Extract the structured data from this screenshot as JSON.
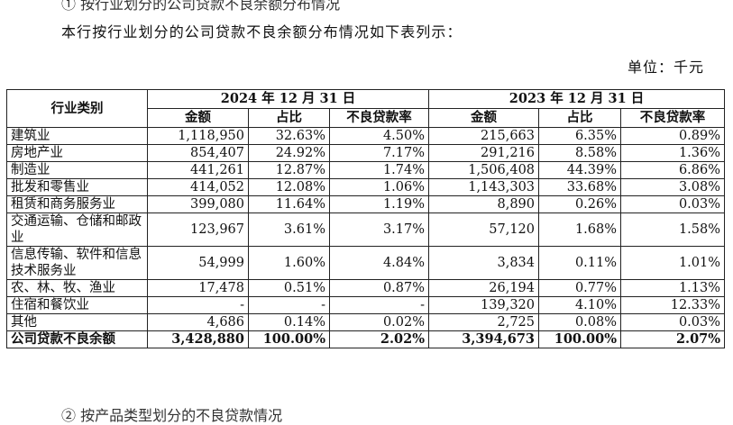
{
  "top_partial": "① 按行业划分的公司贷款不良余额分布情况",
  "intro": "本行按行业划分的公司贷款不良余额分布情况如下表列示：",
  "unit": "单位：千元",
  "bottom_partial": "② 按产品类型划分的不良贷款情况",
  "table": {
    "header_category": "行业类别",
    "year_2024": "2024 年 12 月 31 日",
    "year_2023": "2023 年 12 月 31 日",
    "sub_headers": [
      "金额",
      "占比",
      "不良贷款率",
      "金额",
      "占比",
      "不良贷款率"
    ],
    "rows": [
      {
        "cat": "建筑业",
        "v": [
          "1,118,950",
          "32.63%",
          "4.50%",
          "215,663",
          "6.35%",
          "0.89%"
        ]
      },
      {
        "cat": "房地产业",
        "v": [
          "854,407",
          "24.92%",
          "7.17%",
          "291,216",
          "8.58%",
          "1.36%"
        ]
      },
      {
        "cat": "制造业",
        "v": [
          "441,261",
          "12.87%",
          "1.74%",
          "1,506,408",
          "44.39%",
          "6.86%"
        ]
      },
      {
        "cat": "批发和零售业",
        "v": [
          "414,052",
          "12.08%",
          "1.06%",
          "1,143,303",
          "33.68%",
          "3.08%"
        ]
      },
      {
        "cat": "租赁和商务服务业",
        "v": [
          "399,080",
          "11.64%",
          "1.19%",
          "8,890",
          "0.26%",
          "0.03%"
        ]
      },
      {
        "cat": "交通运输、仓储和邮政业",
        "v": [
          "123,967",
          "3.61%",
          "3.17%",
          "57,120",
          "1.68%",
          "1.58%"
        ]
      },
      {
        "cat": "信息传输、软件和信息技术服务业",
        "v": [
          "54,999",
          "1.60%",
          "4.84%",
          "3,834",
          "0.11%",
          "1.01%"
        ]
      },
      {
        "cat": "农、林、牧、渔业",
        "v": [
          "17,478",
          "0.51%",
          "0.87%",
          "26,194",
          "0.77%",
          "1.13%"
        ]
      },
      {
        "cat": "住宿和餐饮业",
        "v": [
          "-",
          "-",
          "-",
          "139,320",
          "4.10%",
          "12.33%"
        ]
      },
      {
        "cat": "其他",
        "v": [
          "4,686",
          "0.14%",
          "0.02%",
          "2,725",
          "0.08%",
          "0.03%"
        ]
      }
    ],
    "total": {
      "cat": "公司贷款不良余额",
      "v": [
        "3,428,880",
        "100.00%",
        "2.02%",
        "3,394,673",
        "100.00%",
        "2.07%"
      ]
    }
  }
}
